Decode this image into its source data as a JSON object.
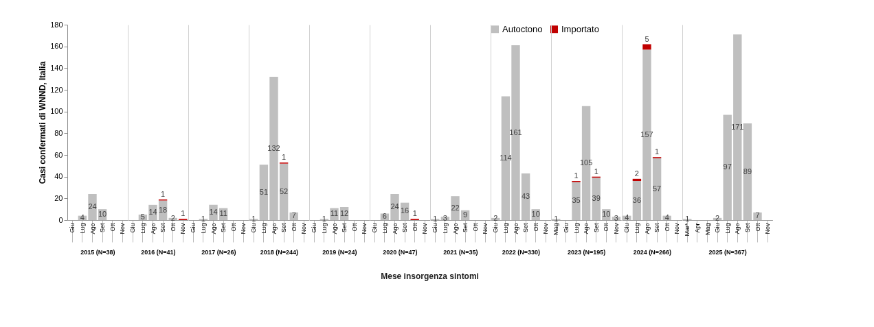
{
  "chart_data": [
    {
      "type": "bar",
      "stacked": true,
      "categories": [
        "Giu",
        "Lug",
        "Ago",
        "Set",
        "Ott",
        "Nov"
      ],
      "xlabel": "2015 (N=38)",
      "ylabel": "Casi confermati di WNND, Italia",
      "ylim": [
        0,
        180
      ],
      "yticks": [
        0,
        20,
        40,
        60,
        80,
        100,
        120,
        140,
        160,
        180
      ],
      "series": [
        {
          "color": "#bfbfbf",
          "values": [
            0,
            4,
            24,
            10,
            0,
            0
          ],
          "value_labels": [
            null,
            "4",
            "24",
            "10",
            null,
            null
          ]
        }
      ]
    },
    {
      "type": "bar",
      "stacked": true,
      "categories": [
        "Giu",
        "Lug",
        "Ago",
        "Set",
        "Ott",
        "Nov"
      ],
      "xlabel": "2016 (N=41)",
      "ylim": [
        0,
        180
      ],
      "tick_labels": "x",
      "series": [
        {
          "color": "#bfbfbf",
          "values": [
            0,
            5,
            14,
            18,
            2,
            0
          ],
          "value_labels": [
            null,
            "5",
            "14",
            "18",
            "2",
            null
          ]
        },
        {
          "color": "#c00000",
          "values": [
            0,
            0,
            0,
            1,
            0,
            1
          ],
          "value_labels": [
            null,
            null,
            null,
            "1",
            null,
            "1"
          ]
        }
      ]
    },
    {
      "type": "bar",
      "stacked": true,
      "categories": [
        "Giu",
        "Lug",
        "Ago",
        "Set",
        "Ott",
        "Nov"
      ],
      "xlabel": "2017 (N=26)",
      "ylim": [
        0,
        180
      ],
      "tick_labels": "x",
      "series": [
        {
          "color": "#bfbfbf",
          "values": [
            0,
            1,
            14,
            11,
            0,
            0
          ],
          "value_labels": [
            null,
            "1",
            "14",
            "11",
            null,
            null
          ]
        }
      ]
    },
    {
      "type": "bar",
      "stacked": true,
      "categories": [
        "Giu",
        "Lug",
        "Ago",
        "Set",
        "Ott",
        "Nov"
      ],
      "xlabel": "2018 (N=244)",
      "ylim": [
        0,
        180
      ],
      "tick_labels": "x",
      "series": [
        {
          "color": "#bfbfbf",
          "values": [
            1,
            51,
            132,
            52,
            7,
            0
          ],
          "value_labels": [
            "1",
            "51",
            "132",
            "52",
            "7",
            null
          ]
        },
        {
          "color": "#c00000",
          "values": [
            0,
            0,
            0,
            1,
            0,
            0
          ],
          "value_labels": [
            null,
            null,
            null,
            "1",
            null,
            null
          ]
        }
      ]
    },
    {
      "type": "bar",
      "stacked": true,
      "categories": [
        "Giu",
        "Lug",
        "Ago",
        "Set",
        "Ott",
        "Nov"
      ],
      "xlabel": "2019 (N=24)",
      "ylim": [
        0,
        180
      ],
      "tick_labels": "x",
      "series": [
        {
          "color": "#bfbfbf",
          "values": [
            0,
            1,
            11,
            12,
            0,
            0
          ],
          "value_labels": [
            null,
            "1",
            "11",
            "12",
            null,
            null
          ]
        }
      ]
    },
    {
      "type": "bar",
      "stacked": true,
      "categories": [
        "Giu",
        "Lug",
        "Ago",
        "Set",
        "Ott",
        "Nov"
      ],
      "xlabel": "2020 (N=47)",
      "ylim": [
        0,
        180
      ],
      "tick_labels": "x",
      "annotations": [
        "Mese insorgenza sintomi"
      ],
      "series": [
        {
          "color": "#bfbfbf",
          "values": [
            0,
            6,
            24,
            16,
            0,
            0
          ],
          "value_labels": [
            null,
            "6",
            "24",
            "16",
            null,
            null
          ]
        },
        {
          "color": "#c00000",
          "values": [
            0,
            0,
            0,
            0,
            1,
            0
          ],
          "value_labels": [
            null,
            null,
            null,
            null,
            "1",
            null
          ]
        }
      ]
    },
    {
      "type": "bar",
      "stacked": true,
      "categories": [
        "Giu",
        "Lug",
        "Ago",
        "Set",
        "Ott",
        "Nov"
      ],
      "xlabel": "2021 (N=35)",
      "ylim": [
        0,
        180
      ],
      "tick_labels": "x",
      "series": [
        {
          "color": "#bfbfbf",
          "values": [
            1,
            3,
            22,
            9,
            0,
            0
          ],
          "value_labels": [
            "1",
            "3",
            "22",
            "9",
            null,
            null
          ]
        }
      ]
    },
    {
      "type": "bar",
      "stacked": true,
      "categories": [
        "Giu",
        "Lug",
        "Ago",
        "Set",
        "Ott",
        "Nov"
      ],
      "xlabel": "2022 (N=330)",
      "ylim": [
        0,
        180
      ],
      "tick_labels": "x",
      "legend": "top",
      "series": [
        {
          "name": "Autoctono",
          "color": "#bfbfbf",
          "values": [
            2,
            114,
            161,
            43,
            10,
            0
          ],
          "value_labels": [
            "2",
            "114",
            "161",
            "43",
            "10",
            null
          ]
        },
        {
          "name": "Importato",
          "color": "#c00000",
          "values": [
            0,
            0,
            0,
            0,
            0,
            0
          ],
          "value_labels": [
            null,
            null,
            null,
            null,
            null,
            null
          ]
        }
      ]
    },
    {
      "type": "bar",
      "stacked": true,
      "categories": [
        "Mag",
        "Giu",
        "Lug",
        "Ago",
        "Set",
        "Ott",
        "Nov"
      ],
      "xlabel": "2023 (N=195)",
      "ylim": [
        0,
        180
      ],
      "tick_labels": "x",
      "series": [
        {
          "color": "#bfbfbf",
          "values": [
            1,
            0,
            35,
            105,
            39,
            10,
            3
          ],
          "value_labels": [
            "1",
            null,
            "35",
            "105",
            "39",
            "10",
            "3"
          ]
        },
        {
          "color": "#c00000",
          "values": [
            0,
            0,
            1,
            0,
            1,
            0,
            0
          ],
          "value_labels": [
            null,
            null,
            "1",
            null,
            "1",
            null,
            null
          ]
        }
      ]
    },
    {
      "type": "bar",
      "stacked": true,
      "categories": [
        "Giu",
        "Lug",
        "Ago",
        "Set",
        "Ott",
        "Nov"
      ],
      "xlabel": "2024 (N=266)",
      "ylim": [
        0,
        180
      ],
      "tick_labels": "x",
      "series": [
        {
          "color": "#bfbfbf",
          "values": [
            4,
            36,
            157,
            57,
            4,
            0
          ],
          "value_labels": [
            "4",
            "36",
            "157",
            "57",
            "4",
            null
          ]
        },
        {
          "color": "#c00000",
          "values": [
            0,
            2,
            5,
            1,
            0,
            0
          ],
          "value_labels": [
            null,
            "2",
            "5",
            "1",
            null,
            null
          ]
        }
      ]
    },
    {
      "type": "bar",
      "stacked": true,
      "categories": [
        "Mar*",
        "Apr",
        "Mag",
        "Giu",
        "Lug",
        "Ago",
        "Set",
        "Ott",
        "Nov"
      ],
      "xlabel": "2025 (N=367)",
      "ylim": [
        0,
        180
      ],
      "tick_labels": "x",
      "series": [
        {
          "color": "#bfbfbf",
          "values": [
            1,
            0,
            0,
            2,
            97,
            171,
            89,
            7,
            0
          ],
          "value_labels": [
            "1",
            null,
            null,
            "2",
            "97",
            "171",
            "89",
            "7",
            null
          ]
        }
      ]
    }
  ]
}
